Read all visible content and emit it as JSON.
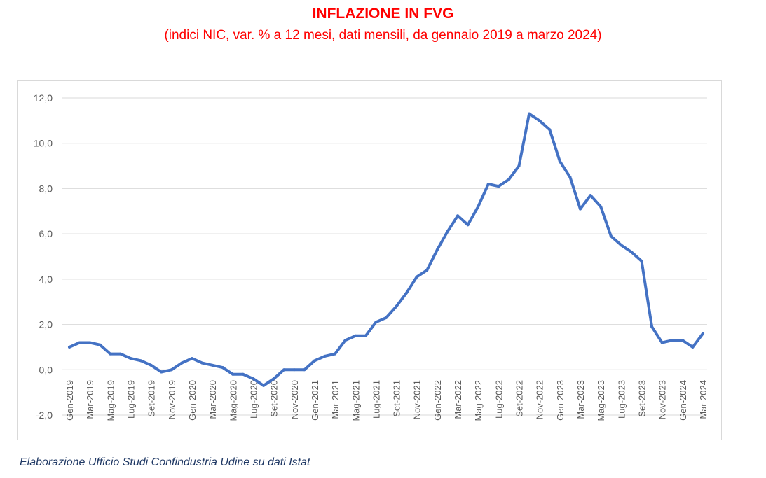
{
  "header": {
    "title": "INFLAZIONE IN FVG",
    "subtitle": "(indici NIC, var. % a 12 mesi, dati mensili, da gennaio 2019 a marzo 2024)"
  },
  "footer": {
    "source": "Elaborazione Ufficio Studi Confindustria Udine su dati Istat"
  },
  "colors": {
    "title": "#ff0000",
    "line": "#4472c4",
    "grid": "#d9d9d9",
    "axis_text": "#595959",
    "footer": "#1f3864"
  },
  "chart_data": {
    "type": "line",
    "title": "INFLAZIONE IN FVG",
    "subtitle": "(indici NIC, var. % a 12 mesi, dati mensili, da gennaio 2019 a marzo 2024)",
    "xlabel": "",
    "ylabel": "",
    "ylim": [
      -2,
      12
    ],
    "y_ticks": [
      "-2,0",
      "0,0",
      "2,0",
      "4,0",
      "6,0",
      "8,0",
      "10,0",
      "12,0"
    ],
    "y_tick_values": [
      -2,
      0,
      2,
      4,
      6,
      8,
      10,
      12
    ],
    "grid": true,
    "legend": "none",
    "x_tick_labels": [
      "Gen-2019",
      "Mar-2019",
      "Mag-2019",
      "Lug-2019",
      "Set-2019",
      "Nov-2019",
      "Gen-2020",
      "Mar-2020",
      "Mag-2020",
      "Lug-2020",
      "Set-2020",
      "Nov-2020",
      "Gen-2021",
      "Mar-2021",
      "Mag-2021",
      "Lug-2021",
      "Set-2021",
      "Nov-2021",
      "Gen-2022",
      "Mar-2022",
      "Mag-2022",
      "Lug-2022",
      "Set-2022",
      "Nov-2022",
      "Gen-2023",
      "Mar-2023",
      "Mag-2023",
      "Lug-2023",
      "Set-2023",
      "Nov-2023",
      "Gen-2024",
      "Mar-2024"
    ],
    "series": [
      {
        "values": [
          1.0,
          1.2,
          1.2,
          1.1,
          0.7,
          0.7,
          0.5,
          0.4,
          0.2,
          -0.1,
          0.0,
          0.3,
          0.5,
          0.3,
          0.2,
          0.1,
          -0.2,
          -0.2,
          -0.4,
          -0.7,
          -0.4,
          0.0,
          0.0,
          0.0,
          0.4,
          0.6,
          0.7,
          1.3,
          1.5,
          1.5,
          2.1,
          2.3,
          2.8,
          3.4,
          4.1,
          4.4,
          5.3,
          6.1,
          6.8,
          6.4,
          7.2,
          8.2,
          8.1,
          8.4,
          9.0,
          11.3,
          11.0,
          10.6,
          9.2,
          8.5,
          7.1,
          7.7,
          7.2,
          5.9,
          5.5,
          5.2,
          4.8,
          1.9,
          1.2,
          1.3,
          1.3,
          1.0,
          1.6
        ]
      }
    ]
  }
}
